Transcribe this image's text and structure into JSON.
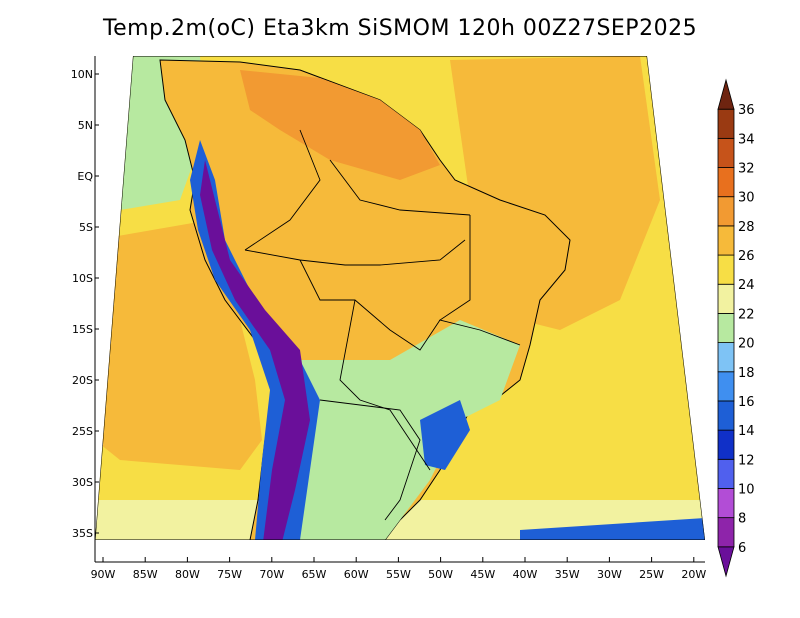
{
  "title": "Temp.2m(oC) Eta3km SiSMOM 120h 00Z27SEP2025",
  "lat_labels": [
    "10N",
    "5N",
    "EQ",
    "5S",
    "10S",
    "15S",
    "20S",
    "25S",
    "30S",
    "35S"
  ],
  "lon_labels": [
    "90W",
    "85W",
    "80W",
    "75W",
    "70W",
    "65W",
    "60W",
    "55W",
    "50W",
    "45W",
    "40W",
    "35W",
    "30W",
    "25W",
    "20W"
  ],
  "colorbar": {
    "labels": [
      "6",
      "8",
      "10",
      "12",
      "14",
      "16",
      "18",
      "20",
      "22",
      "24",
      "26",
      "28",
      "30",
      "32",
      "34",
      "36"
    ],
    "colors": [
      "#6a0f9a",
      "#8e24aa",
      "#b24dd6",
      "#5060ee",
      "#1030c8",
      "#1e5fd6",
      "#3f8ff0",
      "#7ec3f5",
      "#b7e9a0",
      "#f2f2a0",
      "#f7de45",
      "#f6ba3a",
      "#f29a32",
      "#e8701e",
      "#c6531a",
      "#9a3a12",
      "#6e2410"
    ]
  },
  "colors": {
    "ocean_warm": "#f6ba3a",
    "ocean_mild": "#f7de45",
    "ocean_cool": "#f2f2a0",
    "land_hot": "#f29a32",
    "land_mid": "#f6ba3a",
    "land_cool": "#b7e9a0",
    "highland_cold": "#1e5fd6",
    "andes_peak": "#6a0f9a"
  }
}
